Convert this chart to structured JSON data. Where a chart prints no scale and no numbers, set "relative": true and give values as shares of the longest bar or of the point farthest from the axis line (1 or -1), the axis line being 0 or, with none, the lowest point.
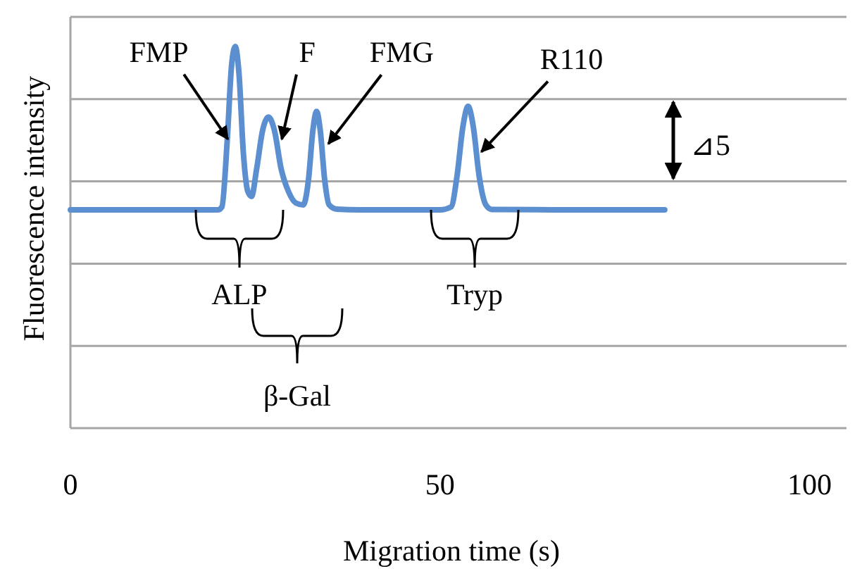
{
  "chart_data": {
    "type": "line",
    "relative": true,
    "xlabel": "Migration time (s)",
    "ylabel": "Fluorescence intensity",
    "xlim": [
      0,
      105
    ],
    "xticks": [
      0,
      50,
      100
    ],
    "grid": true,
    "marker": "none",
    "line_style": "solid",
    "series": [
      {
        "color": "#5b8fd0",
        "x": [
          0,
          10,
          20,
          20.5,
          21.2,
          21.8,
          22.3,
          22.8,
          23.4,
          24.0,
          24.5,
          25.2,
          26.0,
          26.8,
          27.6,
          28.5,
          29.5,
          30.5,
          31.5,
          32.2,
          32.8,
          33.3,
          33.8,
          34.4,
          35.0,
          36,
          40,
          45,
          50,
          51.5,
          52.3,
          53.1,
          53.8,
          54.5,
          55.3,
          56.2,
          57,
          65,
          72,
          80.4
        ],
        "values": [
          0.572,
          0.572,
          0.572,
          0.58,
          0.75,
          0.95,
          1.0,
          0.93,
          0.72,
          0.62,
          0.607,
          0.68,
          0.78,
          0.815,
          0.78,
          0.68,
          0.62,
          0.59,
          0.585,
          0.65,
          0.78,
          0.83,
          0.78,
          0.65,
          0.585,
          0.574,
          0.572,
          0.572,
          0.572,
          0.58,
          0.66,
          0.79,
          0.843,
          0.79,
          0.66,
          0.585,
          0.573,
          0.572,
          0.572,
          0.572
        ]
      }
    ],
    "annotations": [
      {
        "text": "FMP",
        "x": 21.3,
        "y": 0.757
      },
      {
        "text": "F",
        "x": 28.6,
        "y": 0.757
      },
      {
        "text": "FMG",
        "x": 34.9,
        "y": 0.745
      },
      {
        "text": "R110",
        "x": 55.6,
        "y": 0.724
      },
      "ALP",
      "β-Gal",
      "Tryp",
      "⊿5"
    ]
  }
}
